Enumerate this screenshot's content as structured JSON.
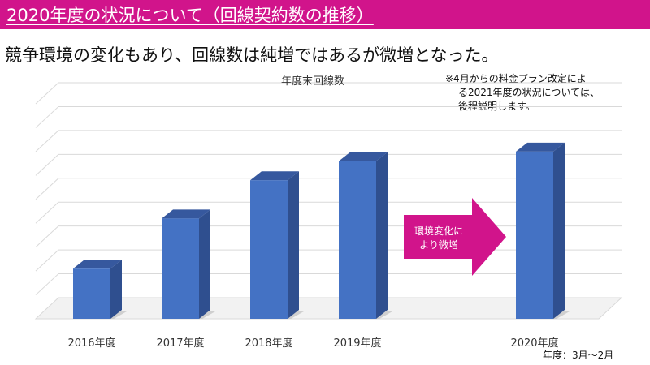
{
  "header": {
    "title": "2020年度の状況について（回線契約数の推移）"
  },
  "subtitle": "競争環境の変化もあり、回線数は純増ではあるが微増となった。",
  "note": {
    "line1": "※4月からの料金プラン改定によ",
    "line2": "る2021年度の状況については、",
    "line3": "後程説明します。"
  },
  "arrow_label": {
    "line1": "環境変化に",
    "line2": "より微増"
  },
  "footer": "年度：3月～2月",
  "colors": {
    "accent": "#d1148b",
    "bar_front": "#4472c4",
    "bar_side": "#2f4f8f",
    "bar_top": "#36589e",
    "grid": "#d9d9d9"
  },
  "chart_data": {
    "type": "bar",
    "title": "年度末回線数",
    "categories": [
      "2016年度",
      "2017年度",
      "2018年度",
      "2019年度",
      "2020年度"
    ],
    "values": [
      2.1,
      4.2,
      5.8,
      6.6,
      7.0
    ],
    "ylim": [
      0,
      9
    ],
    "grid": true,
    "y_tick_labels_shown": false
  }
}
